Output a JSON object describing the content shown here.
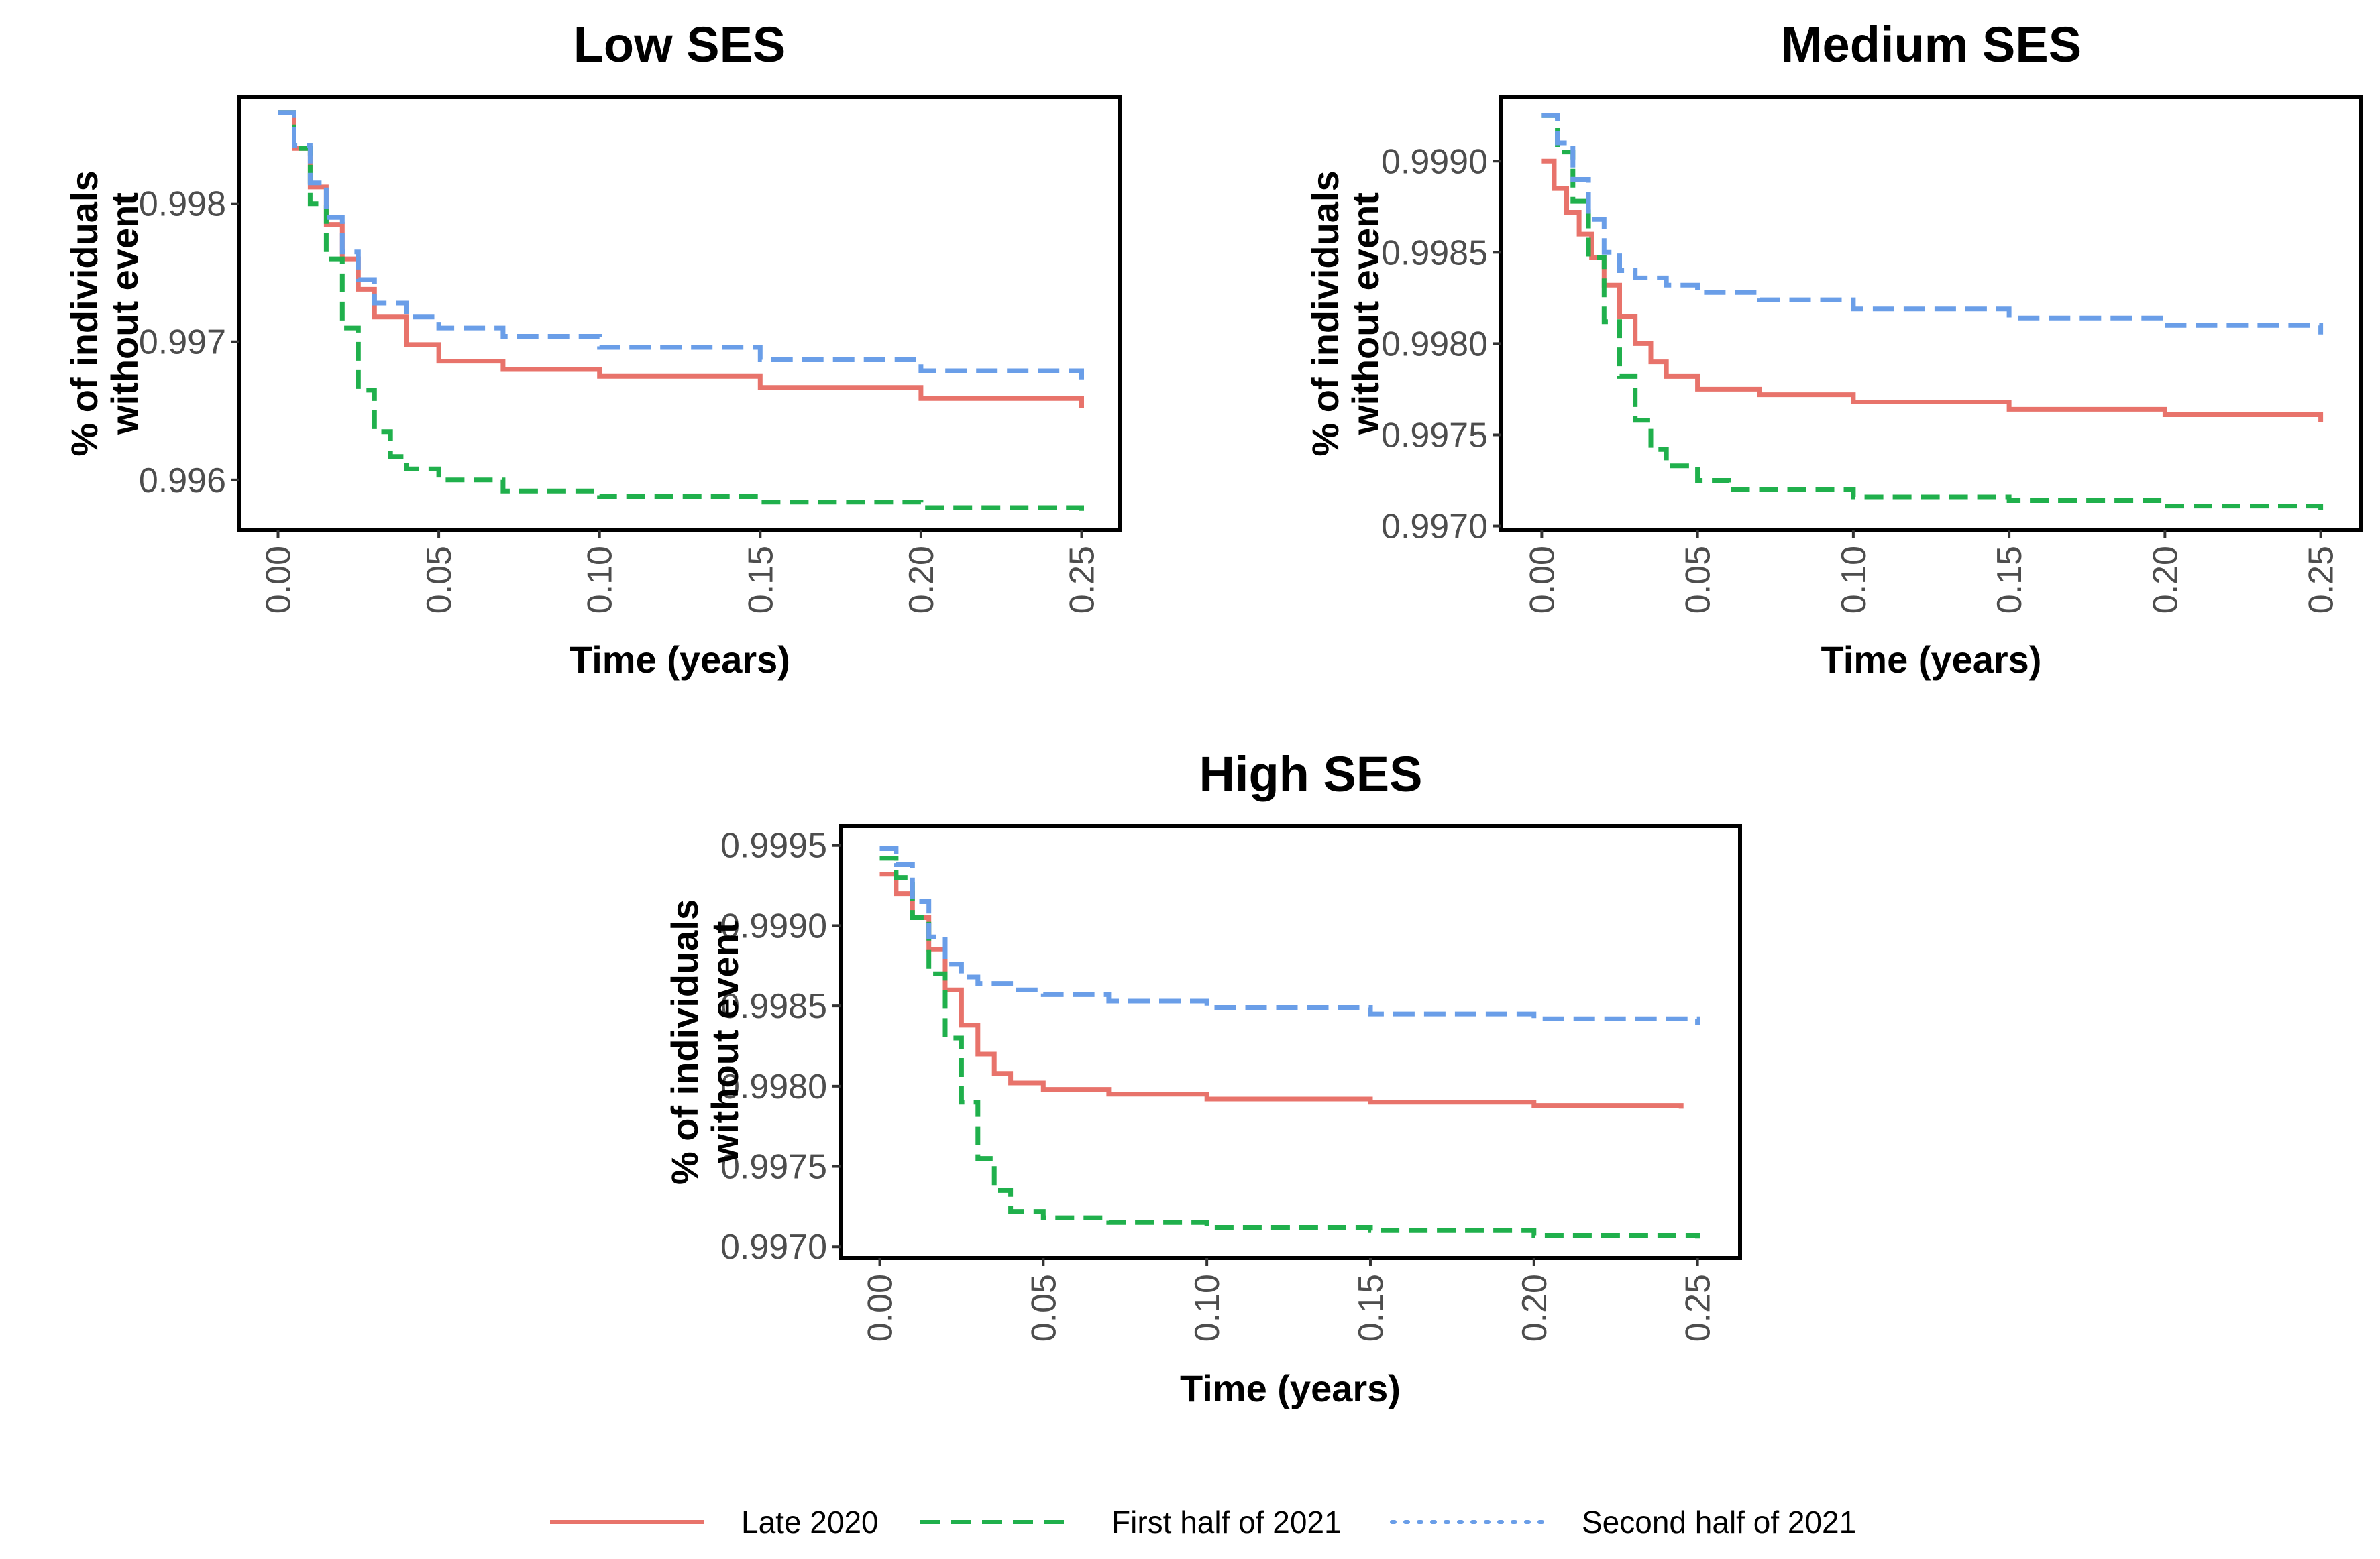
{
  "chart_data": [
    {
      "type": "line",
      "title": "Low SES",
      "xlabel": "Time (years)",
      "ylabel": [
        "% of individuals",
        "without event"
      ],
      "xlim": [
        -0.012,
        0.262
      ],
      "ylim": [
        0.99564,
        0.99877
      ],
      "x_ticks": [
        0.0,
        0.05,
        0.1,
        0.15,
        0.2,
        0.25
      ],
      "x_tick_labels": [
        "0.00",
        "0.05",
        "0.10",
        "0.15",
        "0.20",
        "0.25"
      ],
      "y_ticks": [
        0.996,
        0.997,
        0.998
      ],
      "y_tick_labels": [
        "0.996",
        "0.997",
        "0.998"
      ],
      "series": [
        {
          "name": "Late 2020",
          "x": [
            0.0,
            0.005,
            0.01,
            0.015,
            0.02,
            0.025,
            0.03,
            0.04,
            0.05,
            0.07,
            0.1,
            0.15,
            0.2,
            0.25
          ],
          "y": [
            0.99866,
            0.9984,
            0.99812,
            0.99785,
            0.9976,
            0.99738,
            0.99718,
            0.99698,
            0.99686,
            0.9968,
            0.99675,
            0.99667,
            0.99659,
            0.99652
          ]
        },
        {
          "name": "First half of 2021",
          "x": [
            0.0,
            0.005,
            0.01,
            0.015,
            0.02,
            0.025,
            0.03,
            0.035,
            0.04,
            0.05,
            0.07,
            0.1,
            0.15,
            0.2,
            0.25
          ],
          "y": [
            0.99866,
            0.9984,
            0.998,
            0.9976,
            0.9971,
            0.99665,
            0.99635,
            0.99617,
            0.99608,
            0.996,
            0.99592,
            0.99588,
            0.99584,
            0.9958,
            0.99577
          ]
        },
        {
          "name": "Second half of 2021",
          "x": [
            0.0,
            0.005,
            0.01,
            0.015,
            0.02,
            0.025,
            0.03,
            0.04,
            0.05,
            0.07,
            0.1,
            0.15,
            0.2,
            0.25
          ],
          "y": [
            0.99866,
            0.99842,
            0.99815,
            0.9979,
            0.99765,
            0.99745,
            0.99728,
            0.99718,
            0.9971,
            0.99704,
            0.99696,
            0.99687,
            0.99679,
            0.99672
          ]
        }
      ]
    },
    {
      "type": "line",
      "title": "Medium SES",
      "xlabel": "Time (years)",
      "ylabel": [
        "% of individuals",
        "without event"
      ],
      "xlim": [
        -0.013,
        0.263
      ],
      "ylim": [
        0.99698,
        0.99935
      ],
      "x_ticks": [
        0.0,
        0.05,
        0.1,
        0.15,
        0.2,
        0.25
      ],
      "x_tick_labels": [
        "0.00",
        "0.05",
        "0.10",
        "0.15",
        "0.20",
        "0.25"
      ],
      "y_ticks": [
        0.997,
        0.9975,
        0.998,
        0.9985,
        0.999
      ],
      "y_tick_labels": [
        "0.9970",
        "0.9975",
        "0.9980",
        "0.9985",
        "0.9990"
      ],
      "series": [
        {
          "name": "Late 2020",
          "x": [
            0.0,
            0.004,
            0.008,
            0.012,
            0.016,
            0.02,
            0.025,
            0.03,
            0.035,
            0.04,
            0.05,
            0.07,
            0.1,
            0.15,
            0.2,
            0.25
          ],
          "y": [
            0.999,
            0.99885,
            0.99872,
            0.9986,
            0.99847,
            0.99832,
            0.99815,
            0.998,
            0.9979,
            0.99782,
            0.99775,
            0.99772,
            0.99768,
            0.99764,
            0.99761,
            0.99757
          ]
        },
        {
          "name": "First half of 2021",
          "x": [
            0.0,
            0.005,
            0.01,
            0.015,
            0.02,
            0.025,
            0.03,
            0.035,
            0.04,
            0.05,
            0.06,
            0.1,
            0.15,
            0.2,
            0.25
          ],
          "y": [
            0.99925,
            0.99905,
            0.99878,
            0.99847,
            0.99812,
            0.99782,
            0.99758,
            0.99742,
            0.99733,
            0.99725,
            0.9972,
            0.99716,
            0.99714,
            0.99711,
            0.99708
          ]
        },
        {
          "name": "Second half of 2021",
          "x": [
            0.0,
            0.005,
            0.01,
            0.015,
            0.02,
            0.025,
            0.03,
            0.04,
            0.05,
            0.07,
            0.1,
            0.15,
            0.2,
            0.25
          ],
          "y": [
            0.99925,
            0.9991,
            0.9989,
            0.99868,
            0.9985,
            0.9984,
            0.99836,
            0.99832,
            0.99828,
            0.99824,
            0.99819,
            0.99814,
            0.9981,
            0.99805
          ]
        }
      ]
    },
    {
      "type": "line",
      "title": "High SES",
      "xlabel": "Time (years)",
      "ylabel": [
        "% of individuals",
        "without event"
      ],
      "xlim": [
        -0.012,
        0.263
      ],
      "ylim": [
        0.99693,
        0.99962
      ],
      "x_ticks": [
        0.0,
        0.05,
        0.1,
        0.15,
        0.2,
        0.25
      ],
      "x_tick_labels": [
        "0.00",
        "0.05",
        "0.10",
        "0.15",
        "0.20",
        "0.25"
      ],
      "y_ticks": [
        0.997,
        0.9975,
        0.998,
        0.9985,
        0.999,
        0.9995
      ],
      "y_tick_labels": [
        "0.9970",
        "0.9975",
        "0.9980",
        "0.9985",
        "0.9990",
        "0.9995"
      ],
      "series": [
        {
          "name": "Late 2020",
          "x": [
            0.0,
            0.005,
            0.01,
            0.015,
            0.02,
            0.025,
            0.03,
            0.035,
            0.04,
            0.05,
            0.07,
            0.1,
            0.15,
            0.2,
            0.245
          ],
          "y": [
            0.99932,
            0.9992,
            0.99905,
            0.99885,
            0.9986,
            0.99838,
            0.9982,
            0.99808,
            0.99802,
            0.99798,
            0.99795,
            0.99792,
            0.9979,
            0.99788,
            0.99786
          ]
        },
        {
          "name": "First half of 2021",
          "x": [
            0.0,
            0.005,
            0.01,
            0.015,
            0.02,
            0.025,
            0.03,
            0.035,
            0.04,
            0.05,
            0.07,
            0.1,
            0.15,
            0.2,
            0.25
          ],
          "y": [
            0.99942,
            0.9993,
            0.99905,
            0.9987,
            0.9983,
            0.9979,
            0.99755,
            0.99735,
            0.99722,
            0.99718,
            0.99715,
            0.99712,
            0.9971,
            0.99707,
            0.99705
          ]
        },
        {
          "name": "Second half of 2021",
          "x": [
            0.0,
            0.005,
            0.01,
            0.015,
            0.02,
            0.025,
            0.03,
            0.04,
            0.05,
            0.07,
            0.1,
            0.15,
            0.2,
            0.25
          ],
          "y": [
            0.99948,
            0.99938,
            0.99915,
            0.99893,
            0.99876,
            0.99868,
            0.99864,
            0.9986,
            0.99857,
            0.99853,
            0.99849,
            0.99845,
            0.99842,
            0.99838
          ]
        }
      ]
    }
  ],
  "legend": {
    "position": "bottom",
    "items": [
      {
        "name": "Late 2020",
        "color": "#e8736b",
        "dash": "solid"
      },
      {
        "name": "First half of 2021",
        "color": "#20b04c",
        "dash": "dashed"
      },
      {
        "name": "Second half of 2021",
        "color": "#6a9ee8",
        "dash": "dotted"
      }
    ]
  },
  "colors": {
    "late_2020": "#e8736b",
    "first_half_2021": "#20b04c",
    "second_half_2021": "#6a9ee8"
  }
}
